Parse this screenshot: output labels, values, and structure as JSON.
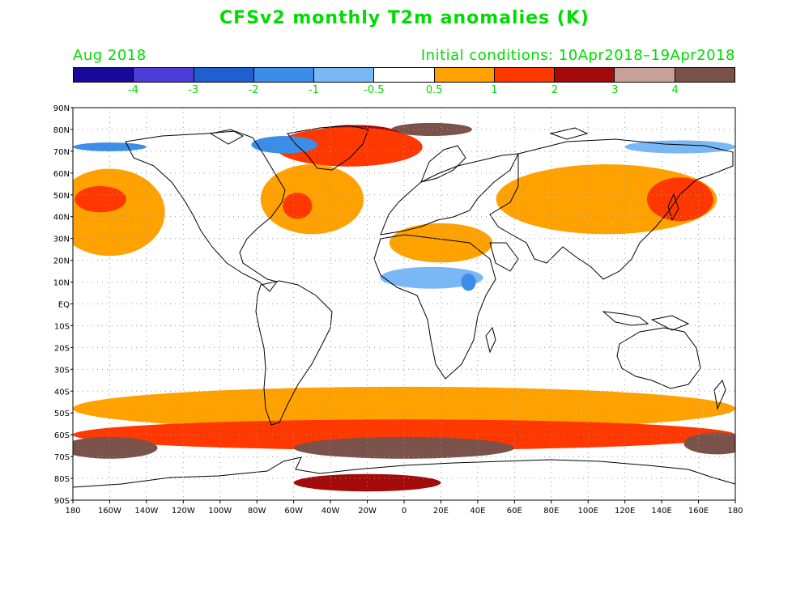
{
  "title": "CFSv2 monthly T2m anomalies (K)",
  "valid_month": "Aug 2018",
  "initial_conditions": "Initial conditions: 10Apr2018–19Apr2018",
  "colorbar": {
    "colors": [
      "#1a0a9a",
      "#4a3ed6",
      "#1f5fd0",
      "#3b8de8",
      "#7ab8f5",
      "#ffffff",
      "#ffa200",
      "#ff3800",
      "#a30a0a",
      "#c8a098",
      "#7a524a"
    ],
    "labels": [
      "-4",
      "-3",
      "-2",
      "-1",
      "-0.5",
      "0.5",
      "1",
      "2",
      "3",
      "4"
    ]
  },
  "axes": {
    "lat_labels": [
      "90N",
      "80N",
      "70N",
      "60N",
      "50N",
      "40N",
      "30N",
      "20N",
      "10N",
      "EQ",
      "10S",
      "20S",
      "30S",
      "40S",
      "50S",
      "60S",
      "70S",
      "80S",
      "90S"
    ],
    "lon_labels": [
      "180",
      "160W",
      "140W",
      "120W",
      "100W",
      "80W",
      "60W",
      "40W",
      "20W",
      "0",
      "20E",
      "40E",
      "60E",
      "80E",
      "100E",
      "120E",
      "140E",
      "160E",
      "180"
    ]
  },
  "map_data": {
    "projection": "cylindrical equidistant",
    "variable": "2-m temperature anomaly (K)",
    "anomaly_regions": [
      {
        "level": "warm_3_4",
        "lon": -30,
        "lat": 78,
        "rx": 18,
        "ry": 4
      },
      {
        "level": "warm_3_4",
        "lon": 15,
        "lat": 80,
        "rx": 22,
        "ry": 3
      },
      {
        "level": "warm_2_3",
        "lon": -25,
        "lat": 77,
        "rx": 24,
        "ry": 5
      },
      {
        "level": "warm_1_2",
        "lon": -30,
        "lat": 72,
        "rx": 40,
        "ry": 9
      },
      {
        "level": "warm_0.5_1",
        "lon": -160,
        "lat": 42,
        "rx": 30,
        "ry": 20
      },
      {
        "level": "warm_1_2",
        "lon": -165,
        "lat": 48,
        "rx": 14,
        "ry": 6
      },
      {
        "level": "warm_0.5_1",
        "lon": -50,
        "lat": 48,
        "rx": 28,
        "ry": 16
      },
      {
        "level": "warm_1_2",
        "lon": -58,
        "lat": 45,
        "rx": 8,
        "ry": 6
      },
      {
        "level": "warm_0.5_1",
        "lon": 20,
        "lat": 28,
        "rx": 28,
        "ry": 9
      },
      {
        "level": "warm_0.5_1",
        "lon": 110,
        "lat": 48,
        "rx": 60,
        "ry": 16
      },
      {
        "level": "warm_1_2",
        "lon": 150,
        "lat": 48,
        "rx": 18,
        "ry": 10
      },
      {
        "level": "cold_0.5_1",
        "lon": 15,
        "lat": 12,
        "rx": 28,
        "ry": 5
      },
      {
        "level": "cold_1_2",
        "lon": 35,
        "lat": 10,
        "rx": 4,
        "ry": 4
      },
      {
        "level": "cold_1_2",
        "lon": -65,
        "lat": 73,
        "rx": 18,
        "ry": 4
      },
      {
        "level": "cold_1_2",
        "lon": -160,
        "lat": 72,
        "rx": 20,
        "ry": 2
      },
      {
        "level": "cold_0.5_1",
        "lon": 150,
        "lat": 72,
        "rx": 30,
        "ry": 3
      },
      {
        "level": "warm_0.5_1",
        "lon": 0,
        "lat": -48,
        "rx": 180,
        "ry": 10
      },
      {
        "level": "warm_1_2",
        "lon": 0,
        "lat": -60,
        "rx": 180,
        "ry": 7
      },
      {
        "level": "warm_3_4",
        "lon": -160,
        "lat": -66,
        "rx": 26,
        "ry": 5
      },
      {
        "level": "warm_3_4",
        "lon": 170,
        "lat": -64,
        "rx": 18,
        "ry": 5
      },
      {
        "level": "warm_3_4",
        "lon": 0,
        "lat": -66,
        "rx": 60,
        "ry": 5
      },
      {
        "level": "warm_2_3",
        "lon": -20,
        "lat": -82,
        "rx": 40,
        "ry": 4
      }
    ]
  }
}
